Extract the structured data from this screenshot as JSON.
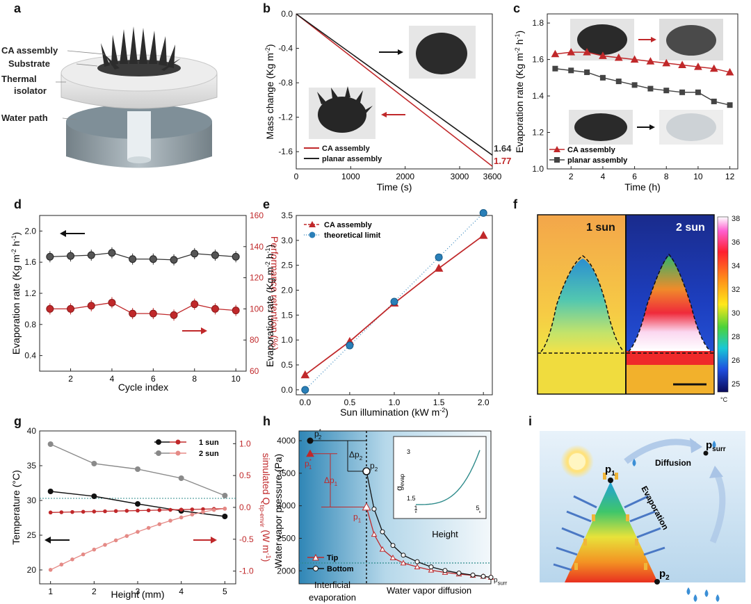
{
  "colors": {
    "red": "#c0282a",
    "black": "#1a1a1a",
    "gray": "#555555",
    "lightred": "#e58a86",
    "grayline": "#8a8a8a",
    "blue": "#2a7fb8",
    "teal": "#2e8b8b"
  },
  "panel_letters": [
    "a",
    "b",
    "c",
    "d",
    "e",
    "f",
    "g",
    "h",
    "i"
  ],
  "panel_a": {
    "labels": [
      "CA assembly",
      "Substrate",
      "Thermal",
      "isolator",
      "Water path"
    ]
  },
  "panel_f": {
    "label_1sun": "1 sun",
    "label_2sun": "2 sun",
    "colorbar_ticks": [
      "38",
      "36",
      "34",
      "32",
      "30",
      "28",
      "26",
      "25"
    ],
    "unit": "°C"
  },
  "panel_i": {
    "p1": "p",
    "p1_sub": "1",
    "p2": "p",
    "p2_sub": "2",
    "psurr": "p",
    "psurr_sub": "surr",
    "diffusion": "Diffusion",
    "evaporation": "Evaporation"
  },
  "chart_data": [
    {
      "id": "b",
      "type": "line",
      "xlabel": "Time (s)",
      "ylabel": "Mass change (Kg m",
      "ylabel_sup": "-2",
      "ylabel_end": ")",
      "xlim": [
        0,
        3600
      ],
      "ylim": [
        -1.8,
        0
      ],
      "xticks": [
        0,
        1000,
        2000,
        3000,
        3600
      ],
      "yticks": [
        0.0,
        -0.4,
        -0.8,
        -1.2,
        -1.6
      ],
      "series": [
        {
          "name": "CA assembly",
          "end_value": -1.77,
          "end_label": "1.77",
          "x": [
            0,
            3600
          ],
          "y": [
            0,
            -1.77
          ]
        },
        {
          "name": "planar assembly",
          "end_value": -1.64,
          "end_label": "1.64",
          "x": [
            0,
            3600
          ],
          "y": [
            0,
            -1.64
          ]
        }
      ]
    },
    {
      "id": "c",
      "type": "line",
      "xlabel": "Time (h)",
      "ylabel": "Evaporation rate (Kg m",
      "ylabel_sup": "-2",
      "ylabel_mid": " h",
      "ylabel_sup2": "-1",
      "ylabel_end": ")",
      "xlim": [
        0.5,
        12.5
      ],
      "ylim": [
        1.0,
        1.85
      ],
      "xticks": [
        2,
        4,
        6,
        8,
        10,
        12
      ],
      "yticks": [
        1.0,
        1.2,
        1.4,
        1.6,
        1.8
      ],
      "x": [
        1,
        2,
        3,
        4,
        5,
        6,
        7,
        8,
        9,
        10,
        11,
        12
      ],
      "series": [
        {
          "name": "CA assembly",
          "values": [
            1.63,
            1.64,
            1.64,
            1.62,
            1.61,
            1.6,
            1.59,
            1.58,
            1.57,
            1.56,
            1.55,
            1.53
          ]
        },
        {
          "name": "planar assembly",
          "values": [
            1.55,
            1.54,
            1.53,
            1.5,
            1.48,
            1.46,
            1.44,
            1.43,
            1.42,
            1.42,
            1.37,
            1.35
          ]
        }
      ]
    },
    {
      "id": "d",
      "type": "line",
      "xlabel": "Cycle index",
      "ylabel": "Evaporation rate (Kg m",
      "ylabel_sup": "-2",
      "ylabel_mid": " h",
      "ylabel_sup2": "-1",
      "ylabel_end": ")",
      "ylabel_right": "Performance retention (%)",
      "xlim": [
        0.5,
        10.5
      ],
      "ylim": [
        0.2,
        2.2
      ],
      "ylim_right": [
        60,
        160
      ],
      "xticks": [
        2,
        4,
        6,
        8,
        10
      ],
      "yticks": [
        0.4,
        0.8,
        1.2,
        1.6,
        2.0
      ],
      "yticks_right": [
        60,
        80,
        100,
        120,
        140,
        160
      ],
      "x": [
        1,
        2,
        3,
        4,
        5,
        6,
        7,
        8,
        9,
        10
      ],
      "series": [
        {
          "name": "Evaporation rate",
          "values": [
            1.67,
            1.68,
            1.69,
            1.72,
            1.64,
            1.64,
            1.63,
            1.71,
            1.69,
            1.67
          ]
        },
        {
          "name": "Performance retention",
          "values": [
            100,
            100,
            102,
            104,
            97,
            97,
            96,
            103,
            100,
            99
          ]
        }
      ]
    },
    {
      "id": "e",
      "type": "line",
      "xlabel": "Sun illumination (kW m",
      "xlabel_sup": "-2",
      "xlabel_end": ")",
      "ylabel": "Evaporation rate (Kg m",
      "ylabel_sup": "-2",
      "ylabel_mid": " h",
      "ylabel_sup2": "-1",
      "ylabel_end": ")",
      "xlim": [
        -0.1,
        2.1
      ],
      "ylim": [
        -0.1,
        3.5
      ],
      "xticks": [
        0.0,
        0.5,
        1.0,
        1.5,
        2.0
      ],
      "yticks": [
        0.0,
        0.5,
        1.0,
        1.5,
        2.0,
        2.5,
        3.0,
        3.5
      ],
      "x": [
        0,
        0.5,
        1.0,
        1.5,
        2.0
      ],
      "series": [
        {
          "name": "CA assembly",
          "values": [
            0.3,
            0.97,
            1.74,
            2.44,
            3.1
          ]
        },
        {
          "name": "theoretical limit",
          "values": [
            0.0,
            0.89,
            1.77,
            2.66,
            3.55
          ]
        }
      ]
    },
    {
      "id": "g",
      "type": "line",
      "xlabel": "Height (mm)",
      "ylabel": "Temperature (°C)",
      "ylabel_right": "simulated Q",
      "ylabel_right_sub": "tip-envir",
      "ylabel_right_end": " (W m",
      "ylabel_right_sup": "-1",
      "ylabel_right_end2": ")",
      "xlim": [
        0.75,
        5.25
      ],
      "ylim": [
        18,
        40
      ],
      "ylim_right": [
        -1.2,
        1.2
      ],
      "xticks": [
        1,
        2,
        3,
        4,
        5
      ],
      "yticks": [
        20,
        25,
        30,
        35,
        40
      ],
      "yticks_right": [
        -1.0,
        -0.5,
        0.0,
        0.5,
        1.0
      ],
      "x": [
        1,
        2,
        3,
        4,
        5
      ],
      "series": [
        {
          "name": "1 sun",
          "values": [
            31.3,
            30.6,
            29.5,
            28.5,
            27.7
          ]
        },
        {
          "name": "2 sun",
          "values": [
            38.1,
            35.3,
            34.5,
            33.2,
            30.7
          ]
        }
      ],
      "simulated": [
        {
          "name": "1 sun",
          "start": -0.08,
          "end": -0.02
        },
        {
          "name": "2 sun",
          "start": -0.98,
          "end": -0.02
        }
      ]
    },
    {
      "id": "h",
      "type": "line",
      "xlabel_left": "Interficial",
      "xlabel_left2": "evaporation",
      "xlabel_right": "Water vapor diffusion",
      "ylabel": "Water vapor pressure (Pa)",
      "ylim": [
        1800,
        4150
      ],
      "yticks": [
        2000,
        2500,
        3000,
        3500,
        4000
      ],
      "labels": {
        "p2s": "p",
        "p2s_sup": "*",
        "p2s_sub": "2",
        "p1s": "p",
        "p1s_sup": "*",
        "p1s_sub": "1",
        "p2": "p",
        "p2_sub": "2",
        "p1": "p",
        "p1_sub": "1",
        "dp2": "Δp",
        "dp2_sub": "2",
        "dp1": "Δp",
        "dp1_sub": "1",
        "psurr": "p",
        "psurr_sub": "surr"
      },
      "points": {
        "p2_star": 4000,
        "p1_star": 3800,
        "p2": 3530,
        "p1": 2980,
        "p_surr": 1880
      },
      "series": [
        {
          "name": "Tip",
          "values": [
            2980,
            2560,
            2330,
            2200,
            2120,
            2060,
            2010,
            1975,
            1950,
            1930,
            1915,
            1900
          ]
        },
        {
          "name": "Bottom",
          "values": [
            3530,
            2950,
            2600,
            2390,
            2240,
            2140,
            2060,
            2005,
            1965,
            1935,
            1915,
            1900
          ]
        }
      ],
      "inset": {
        "ylabel": "g",
        "ylabel_sub": "evap",
        "xlabel": "Height",
        "xticks": [
          1,
          5
        ],
        "yticks": [
          1.5,
          3.0
        ],
        "x": [
          1,
          2,
          3,
          4,
          5
        ],
        "values": [
          1.42,
          1.48,
          1.6,
          1.92,
          2.85
        ]
      }
    }
  ]
}
